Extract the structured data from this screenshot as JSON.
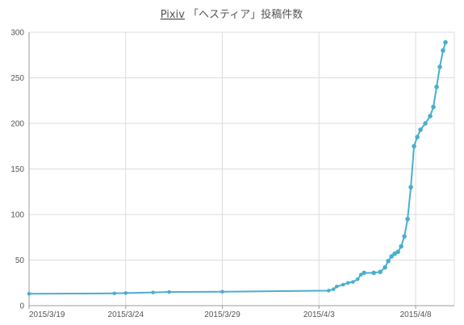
{
  "chart_data": {
    "type": "line",
    "title": "Pixiv 「ヘスティア」投稿件数",
    "title_parts": {
      "app": "Pixiv",
      "rest": " 「ヘスティア」投稿件数"
    },
    "xlabel": "",
    "ylabel": "",
    "x_tick_labels": [
      "2015/3/19",
      "2015/3/24",
      "2015/3/29",
      "2015/4/3",
      "2015/4/8"
    ],
    "x_ticks": [
      "2015-03-19",
      "2015-03-24",
      "2015-03-29",
      "2015-04-03",
      "2015-04-08"
    ],
    "xlim": [
      "2015-03-19",
      "2015-04-10"
    ],
    "y_tick_labels": [
      "0",
      "50",
      "100",
      "150",
      "200",
      "250",
      "300"
    ],
    "y_ticks": [
      0,
      50,
      100,
      150,
      200,
      250,
      300
    ],
    "ylim": [
      0,
      300
    ],
    "grid": true,
    "legend": "none",
    "color": "#4aaecf",
    "series": [
      {
        "points": [
          [
            "2015-03-19 00:00",
            13
          ],
          [
            "2015-03-23 10:00",
            13.5
          ],
          [
            "2015-03-24 00:00",
            13.8
          ],
          [
            "2015-03-25 10:00",
            14.5
          ],
          [
            "2015-03-26 06:00",
            15
          ],
          [
            "2015-03-29 00:00",
            15.3
          ],
          [
            "2015-04-03 12:00",
            16.5
          ],
          [
            "2015-04-03 18:00",
            18
          ],
          [
            "2015-04-03 22:00",
            21
          ],
          [
            "2015-04-04 06:00",
            23
          ],
          [
            "2015-04-04 12:00",
            25
          ],
          [
            "2015-04-04 18:00",
            26
          ],
          [
            "2015-04-05 00:00",
            29
          ],
          [
            "2015-04-05 04:00",
            34
          ],
          [
            "2015-04-05 08:00",
            36
          ],
          [
            "2015-04-05 20:00",
            36
          ],
          [
            "2015-04-06 04:00",
            37
          ],
          [
            "2015-04-06 10:00",
            42
          ],
          [
            "2015-04-06 14:00",
            49
          ],
          [
            "2015-04-06 18:00",
            54
          ],
          [
            "2015-04-06 22:00",
            57
          ],
          [
            "2015-04-07 02:00",
            59
          ],
          [
            "2015-04-07 06:00",
            65
          ],
          [
            "2015-04-07 10:00",
            76
          ],
          [
            "2015-04-07 14:00",
            95
          ],
          [
            "2015-04-07 18:00",
            130
          ],
          [
            "2015-04-07 22:00",
            175
          ],
          [
            "2015-04-08 02:00",
            185
          ],
          [
            "2015-04-08 06:00",
            193
          ],
          [
            "2015-04-08 12:00",
            200
          ],
          [
            "2015-04-08 18:00",
            208
          ],
          [
            "2015-04-08 22:00",
            218
          ],
          [
            "2015-04-09 02:00",
            240
          ],
          [
            "2015-04-09 06:00",
            262
          ],
          [
            "2015-04-09 10:00",
            280
          ],
          [
            "2015-04-09 13:00",
            289
          ]
        ]
      }
    ]
  }
}
